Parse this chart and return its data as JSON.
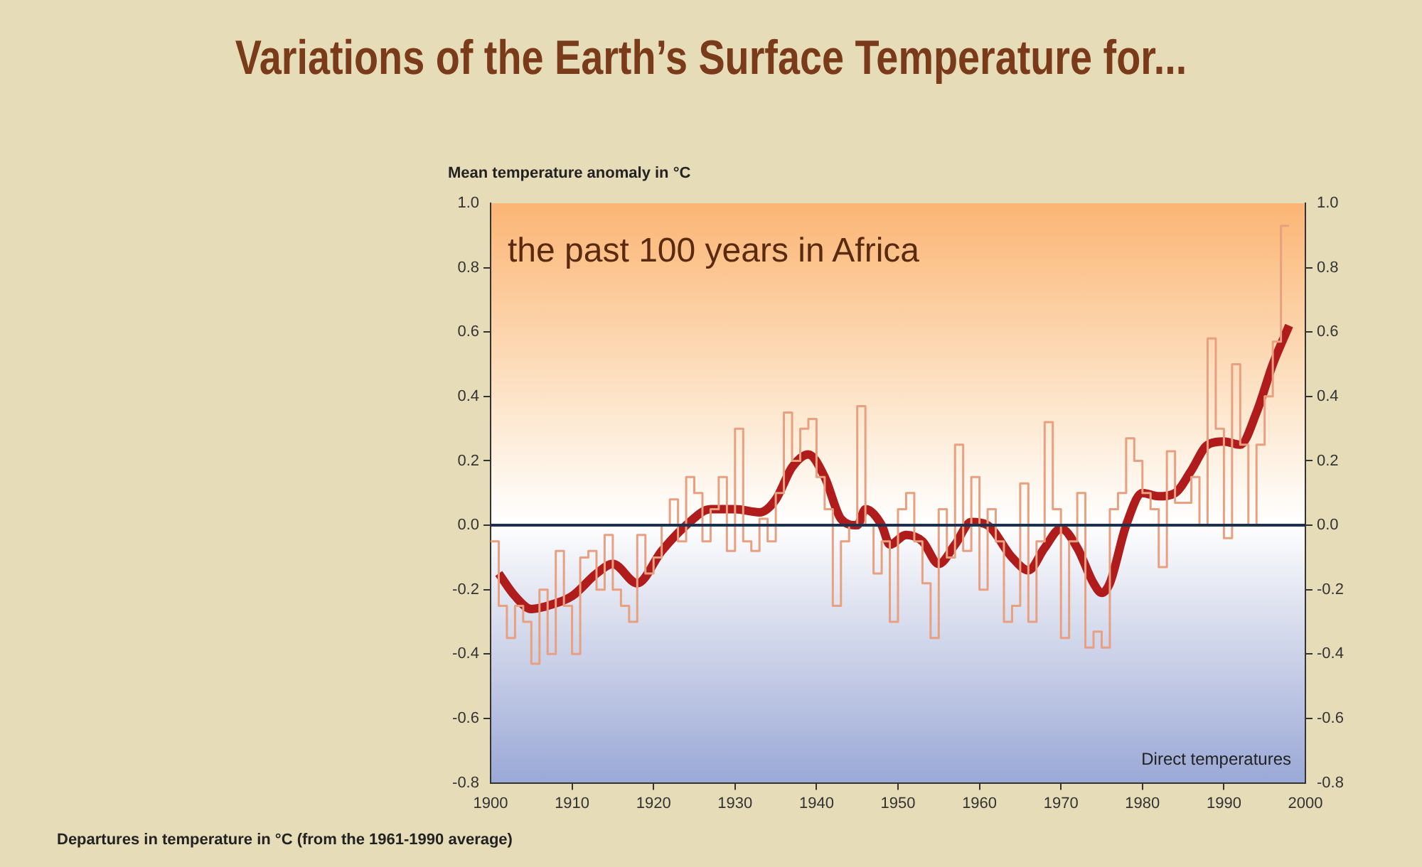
{
  "chart_data": {
    "type": "line",
    "title": "Variations of the Earth’s Surface Temperature for...",
    "subtitle": "the past 100 years in Africa",
    "ylabel": "Mean temperature anomaly in °C",
    "annotations": [
      "Direct temperatures",
      "Departures in temperature in °C (from the 1961-1990 average)"
    ],
    "series": [
      {
        "type": "step",
        "color": "#e8a080",
        "x": [
          1900,
          1901,
          1902,
          1903,
          1904,
          1905,
          1906,
          1907,
          1908,
          1909,
          1910,
          1911,
          1912,
          1913,
          1914,
          1915,
          1916,
          1917,
          1918,
          1919,
          1920,
          1921,
          1922,
          1923,
          1924,
          1925,
          1926,
          1927,
          1928,
          1929,
          1930,
          1931,
          1932,
          1933,
          1934,
          1935,
          1936,
          1937,
          1938,
          1939,
          1940,
          1941,
          1942,
          1943,
          1944,
          1945,
          1946,
          1947,
          1948,
          1949,
          1950,
          1951,
          1952,
          1953,
          1954,
          1955,
          1956,
          1957,
          1958,
          1959,
          1960,
          1961,
          1962,
          1963,
          1964,
          1965,
          1966,
          1967,
          1968,
          1969,
          1970,
          1971,
          1972,
          1973,
          1974,
          1975,
          1976,
          1977,
          1978,
          1979,
          1980,
          1981,
          1982,
          1983,
          1984,
          1985,
          1986,
          1987,
          1988,
          1989,
          1990,
          1991,
          1992,
          1993,
          1994,
          1995,
          1996,
          1997,
          1998
        ],
        "values": [
          -0.05,
          -0.05,
          -0.25,
          -0.35,
          -0.25,
          -0.3,
          -0.43,
          -0.2,
          -0.4,
          -0.08,
          -0.25,
          -0.4,
          -0.1,
          -0.08,
          -0.2,
          -0.03,
          -0.2,
          -0.25,
          -0.3,
          -0.03,
          -0.15,
          -0.1,
          0.0,
          0.08,
          -0.05,
          0.15,
          0.1,
          -0.05,
          0.05,
          0.15,
          -0.08,
          0.3,
          -0.05,
          -0.08,
          0.02,
          -0.05,
          0.1,
          0.35,
          0.2,
          0.3,
          0.33,
          0.15,
          0.05,
          -0.25,
          -0.05,
          0.0,
          0.37,
          0.0,
          -0.15,
          -0.05,
          -0.3,
          0.05,
          0.1,
          -0.05,
          -0.18,
          -0.35,
          0.05,
          -0.1,
          0.25,
          -0.08,
          0.15,
          -0.2,
          0.05,
          -0.05,
          -0.3,
          -0.25,
          0.13,
          -0.3,
          -0.05,
          0.32,
          0.05,
          -0.35,
          -0.05,
          0.1,
          -0.38,
          -0.33,
          -0.38,
          0.05,
          0.1,
          0.27,
          0.2,
          0.1,
          0.05,
          -0.13,
          0.23,
          0.07,
          0.07,
          0.15,
          0.0,
          0.58,
          0.3,
          -0.04,
          0.5,
          0.25,
          0.0,
          0.25,
          0.4,
          0.57,
          0.93
        ]
      },
      {
        "type": "line",
        "color": "#b01c1c",
        "x": [
          1901,
          1903,
          1905,
          1907,
          1910,
          1913,
          1915,
          1918,
          1921,
          1924,
          1927,
          1930,
          1933,
          1935,
          1937,
          1939,
          1941,
          1943,
          1945,
          1946,
          1948,
          1949,
          1951,
          1953,
          1955,
          1957,
          1959,
          1961,
          1964,
          1966,
          1968,
          1970,
          1972,
          1974,
          1975,
          1976,
          1978,
          1980,
          1982,
          1984,
          1986,
          1988,
          1990,
          1992,
          1994,
          1996,
          1998
        ],
        "values": [
          -0.15,
          -0.22,
          -0.26,
          -0.25,
          -0.22,
          -0.15,
          -0.12,
          -0.18,
          -0.08,
          0.0,
          0.05,
          0.05,
          0.04,
          0.08,
          0.18,
          0.22,
          0.15,
          0.02,
          0.0,
          0.05,
          0.0,
          -0.06,
          -0.03,
          -0.05,
          -0.12,
          -0.06,
          0.01,
          0.0,
          -0.1,
          -0.14,
          -0.07,
          -0.01,
          -0.07,
          -0.18,
          -0.21,
          -0.18,
          0.0,
          0.1,
          0.09,
          0.1,
          0.17,
          0.25,
          0.26,
          0.25,
          0.35,
          0.5,
          0.62
        ]
      }
    ],
    "xlim": [
      1900,
      2000
    ],
    "xticks": [
      1900,
      1910,
      1920,
      1930,
      1940,
      1950,
      1960,
      1970,
      1980,
      1990,
      2000
    ],
    "ylim": [
      -0.8,
      1.0
    ],
    "yticks": [
      {
        "value": -0.8,
        "label": "-0.8"
      },
      {
        "value": -0.6,
        "label": "-0.6"
      },
      {
        "value": -0.4,
        "label": "-0.4"
      },
      {
        "value": -0.2,
        "label": "-0.2"
      },
      {
        "value": 0,
        "label": "0.0"
      },
      {
        "value": 0.2,
        "label": "0.2"
      },
      {
        "value": 0.4,
        "label": "0.4"
      },
      {
        "value": 0.6,
        "label": "0.6"
      },
      {
        "value": 0.8,
        "label": "0.8"
      },
      {
        "value": 1,
        "label": "1.0"
      }
    ],
    "y2lim": [
      -0.8,
      1.0
    ],
    "y2ticks": [
      {
        "value": -0.8,
        "label": "-0.8"
      },
      {
        "value": -0.6,
        "label": "-0.6"
      },
      {
        "value": -0.4,
        "label": "-0.4"
      },
      {
        "value": -0.2,
        "label": "-0.2"
      },
      {
        "value": 0,
        "label": "0.0"
      },
      {
        "value": 0.2,
        "label": "0.2"
      },
      {
        "value": 0.4,
        "label": "0.4"
      },
      {
        "value": 0.6,
        "label": "0.6"
      },
      {
        "value": 0.8,
        "label": "0.8"
      },
      {
        "value": 1,
        "label": "1.0"
      }
    ],
    "ref_lines": [
      {
        "axis": "y",
        "value": 0,
        "color": "#1c3050"
      }
    ],
    "grid": false,
    "legend": false,
    "marker": "none"
  }
}
